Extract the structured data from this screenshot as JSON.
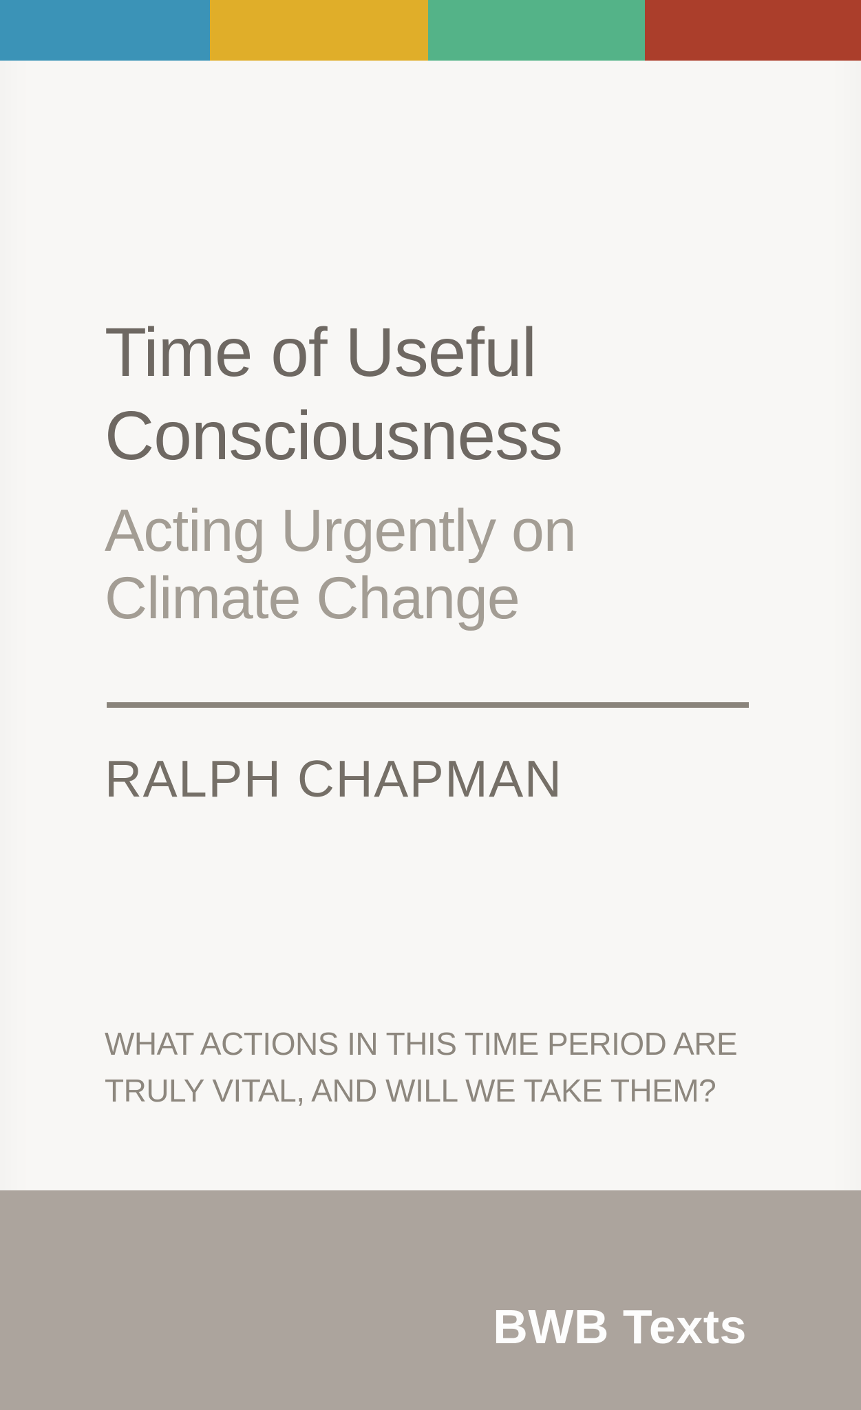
{
  "cover": {
    "title_lines": [
      "Time of Useful",
      "Consciousness"
    ],
    "subtitle_lines": [
      "Acting Urgently on",
      "Climate Change"
    ],
    "author": "RALPH CHAPMAN",
    "tagline_lines": [
      "WHAT ACTIONS IN THIS TIME PERIOD ARE",
      "TRULY VITAL, AND WILL WE TAKE THEM?"
    ],
    "publisher": "BWB Texts"
  },
  "colors": {
    "stripe_blue": "#3b93b7",
    "stripe_yellow": "#e0ae29",
    "stripe_green": "#54b388",
    "stripe_red": "#ab3e2b",
    "background": "#f8f7f5",
    "footer_band": "#aca49d",
    "title_text": "#6e6862",
    "subtitle_text": "#a39d94",
    "author_text": "#756f67",
    "tagline_text": "#8d877e",
    "rule": "#8a847b",
    "publisher_text": "#fdfdfd"
  }
}
